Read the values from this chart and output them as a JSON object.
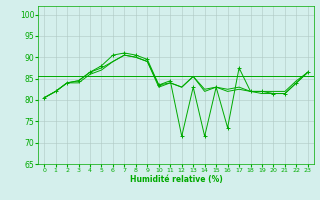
{
  "title": "",
  "xlabel": "Humidité relative (%)",
  "ylabel": "",
  "xlim": [
    -0.5,
    23.5
  ],
  "ylim": [
    65,
    102
  ],
  "yticks": [
    65,
    70,
    75,
    80,
    85,
    90,
    95,
    100
  ],
  "xticks": [
    0,
    1,
    2,
    3,
    4,
    5,
    6,
    7,
    8,
    9,
    10,
    11,
    12,
    13,
    14,
    15,
    16,
    17,
    18,
    19,
    20,
    21,
    22,
    23
  ],
  "background_color": "#d4efec",
  "grid_color": "#b0c8c4",
  "line_color": "#00aa00",
  "series1": [
    80.5,
    82.0,
    84.0,
    84.5,
    86.5,
    87.5,
    89.0,
    90.5,
    90.0,
    89.0,
    83.5,
    84.0,
    83.0,
    85.5,
    82.5,
    83.0,
    82.5,
    83.0,
    82.0,
    82.0,
    82.0,
    82.0,
    84.5,
    86.5
  ],
  "series2": [
    80.5,
    82.0,
    84.0,
    84.0,
    86.0,
    87.0,
    89.0,
    90.5,
    90.0,
    89.0,
    83.0,
    84.0,
    83.0,
    85.5,
    82.0,
    83.0,
    82.0,
    82.5,
    82.0,
    81.5,
    81.5,
    81.5,
    84.0,
    86.5
  ],
  "series3": [
    80.5,
    82.0,
    84.0,
    84.5,
    86.5,
    88.0,
    90.5,
    91.0,
    90.5,
    89.5,
    83.5,
    84.5,
    71.5,
    83.0,
    71.5,
    83.0,
    73.5,
    87.5,
    82.0,
    82.0,
    81.5,
    81.5,
    84.0,
    86.5
  ],
  "flat_line_y": 85.5
}
